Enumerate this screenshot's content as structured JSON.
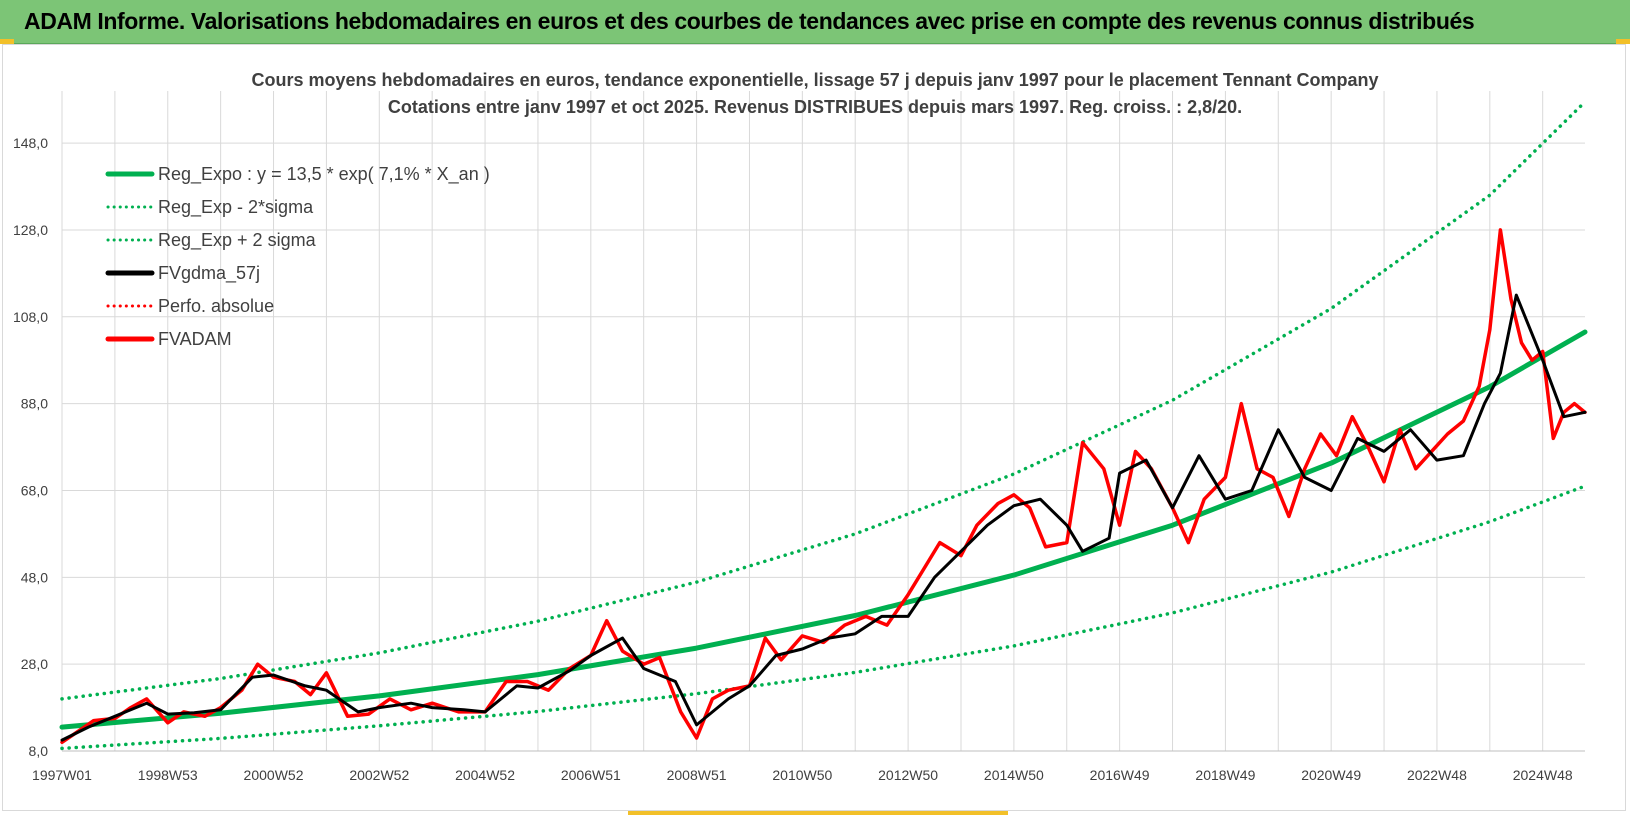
{
  "header": {
    "title": "ADAM Informe. Valorisations hebdomadaires en euros et des courbes de tendances avec prise en compte des revenus connus distribués"
  },
  "colors": {
    "header_bg": "#7cc576",
    "trend": "#00b050",
    "smooth": "#000000",
    "price": "#ff0000",
    "grid": "#d9d9d9"
  },
  "chart_data": {
    "type": "line",
    "title_line1": "Cours moyens hebdomadaires en euros, tendance exponentielle, lissage 57 j depuis janv 1997 pour le placement Tennant Company",
    "title_line2": "Cotations entre janv 1997 et oct 2025. Revenus DISTRIBUES depuis mars 1997. Reg. croiss. : 2,8/20.",
    "ylim": [
      8,
      160
    ],
    "yticks": [
      "8,0",
      "28,0",
      "48,0",
      "68,0",
      "88,0",
      "108,0",
      "128,0",
      "148,0"
    ],
    "xlim": [
      1997.0,
      2025.8
    ],
    "xticks": [
      {
        "label": "1997W01",
        "x": 1997.0
      },
      {
        "label": "1998W53",
        "x": 1999.0
      },
      {
        "label": "2000W52",
        "x": 2001.0
      },
      {
        "label": "2002W52",
        "x": 2003.0
      },
      {
        "label": "2004W52",
        "x": 2005.0
      },
      {
        "label": "2006W51",
        "x": 2007.0
      },
      {
        "label": "2008W51",
        "x": 2009.0
      },
      {
        "label": "2010W50",
        "x": 2011.0
      },
      {
        "label": "2012W50",
        "x": 2013.0
      },
      {
        "label": "2014W50",
        "x": 2015.0
      },
      {
        "label": "2016W49",
        "x": 2017.0
      },
      {
        "label": "2018W49",
        "x": 2019.0
      },
      {
        "label": "2020W49",
        "x": 2021.0
      },
      {
        "label": "2022W48",
        "x": 2023.0
      },
      {
        "label": "2024W48",
        "x": 2025.0
      }
    ],
    "legend": [
      {
        "label": "Reg_Expo : y = 13,5 * exp( 7,1% *  X_an )",
        "style": "solid",
        "color": "#00b050"
      },
      {
        "label": "Reg_Exp - 2*sigma",
        "style": "dotted",
        "color": "#00b050"
      },
      {
        "label": "Reg_Exp + 2 sigma",
        "style": "dotted",
        "color": "#00b050"
      },
      {
        "label": "FVgdma_57j",
        "style": "solid",
        "color": "#000000"
      },
      {
        "label": "Perfo. absolue",
        "style": "dotted",
        "color": "#ff0000"
      },
      {
        "label": "FVADAM",
        "style": "solid",
        "color": "#ff0000"
      }
    ],
    "series": [
      {
        "name": "Reg_Expo : y = 13,5 * exp( 7,1% *  X_an )",
        "x": [
          1997.0,
          2000.0,
          2003.0,
          2006.0,
          2009.0,
          2012.0,
          2015.0,
          2018.0,
          2021.0,
          2024.0,
          2025.8
        ],
        "y": [
          13.5,
          16.7,
          20.7,
          25.6,
          31.7,
          39.2,
          48.5,
          60.0,
          74.3,
          91.9,
          104.5
        ]
      },
      {
        "name": "Reg_Exp - 2*sigma",
        "x": [
          1997.0,
          2000.0,
          2003.0,
          2006.0,
          2009.0,
          2012.0,
          2015.0,
          2018.0,
          2021.0,
          2024.0,
          2025.8
        ],
        "y": [
          8.6,
          10.9,
          13.8,
          17.1,
          21.2,
          26.1,
          32.2,
          39.8,
          49.2,
          60.8,
          69.0
        ]
      },
      {
        "name": "Reg_Exp + 2 sigma",
        "x": [
          1997.0,
          2000.0,
          2003.0,
          2006.0,
          2009.0,
          2012.0,
          2015.0,
          2018.0,
          2021.0,
          2024.0,
          2025.8
        ],
        "y": [
          20.0,
          24.7,
          30.6,
          37.9,
          46.9,
          58.0,
          71.8,
          88.8,
          109.9,
          136.0,
          157.5
        ]
      },
      {
        "name": "FVgdma_57j",
        "x": [
          1997.0,
          1997.5,
          1998.0,
          1998.6,
          1999.0,
          1999.5,
          2000.0,
          2000.6,
          2001.0,
          2001.6,
          2002.0,
          2002.6,
          2003.0,
          2003.6,
          2004.0,
          2004.6,
          2005.0,
          2005.6,
          2006.0,
          2006.6,
          2007.0,
          2007.6,
          2008.0,
          2008.6,
          2009.0,
          2009.6,
          2010.0,
          2010.5,
          2011.0,
          2011.5,
          2012.0,
          2012.5,
          2013.0,
          2013.5,
          2014.0,
          2014.5,
          2015.0,
          2015.5,
          2016.0,
          2016.3,
          2016.8,
          2017.0,
          2017.5,
          2018.0,
          2018.5,
          2019.0,
          2019.5,
          2020.0,
          2020.5,
          2021.0,
          2021.5,
          2022.0,
          2022.5,
          2023.0,
          2023.5,
          2023.9,
          2024.2,
          2024.5,
          2025.0,
          2025.4,
          2025.8
        ],
        "y": [
          10.5,
          13.5,
          16.0,
          19.0,
          16.5,
          16.8,
          17.5,
          25.0,
          25.5,
          23.0,
          22.0,
          17.0,
          18.0,
          19.0,
          18.0,
          17.5,
          17.0,
          23.0,
          22.5,
          26.5,
          30.0,
          34.0,
          27.0,
          24.0,
          14.0,
          20.0,
          23.0,
          30.0,
          31.5,
          34.0,
          35.0,
          39.0,
          39.0,
          48.0,
          54.0,
          60.0,
          64.5,
          66.0,
          60.0,
          54.0,
          57.0,
          72.0,
          75.0,
          64.0,
          76.0,
          66.0,
          68.0,
          82.0,
          71.0,
          68.0,
          80.0,
          77.0,
          82.0,
          75.0,
          76.0,
          88.0,
          95.0,
          113.0,
          98.0,
          85.0,
          86.0
        ]
      },
      {
        "name": "FVADAM",
        "x": [
          1997.0,
          1997.3,
          1997.6,
          1998.0,
          1998.3,
          1998.6,
          1999.0,
          1999.3,
          1999.7,
          2000.0,
          2000.4,
          2000.7,
          2001.0,
          2001.4,
          2001.7,
          2002.0,
          2002.4,
          2002.8,
          2003.2,
          2003.6,
          2004.0,
          2004.5,
          2005.0,
          2005.4,
          2005.8,
          2006.2,
          2006.6,
          2007.0,
          2007.3,
          2007.6,
          2008.0,
          2008.3,
          2008.7,
          2009.0,
          2009.3,
          2009.6,
          2010.0,
          2010.3,
          2010.6,
          2011.0,
          2011.4,
          2011.8,
          2012.2,
          2012.6,
          2013.0,
          2013.3,
          2013.6,
          2014.0,
          2014.3,
          2014.7,
          2015.0,
          2015.3,
          2015.6,
          2016.0,
          2016.3,
          2016.7,
          2017.0,
          2017.3,
          2017.6,
          2018.0,
          2018.3,
          2018.6,
          2019.0,
          2019.3,
          2019.6,
          2019.9,
          2020.2,
          2020.5,
          2020.8,
          2021.1,
          2021.4,
          2021.7,
          2022.0,
          2022.3,
          2022.6,
          2022.9,
          2023.2,
          2023.5,
          2023.8,
          2024.0,
          2024.2,
          2024.4,
          2024.6,
          2024.8,
          2025.0,
          2025.2,
          2025.4,
          2025.6,
          2025.8
        ],
        "y": [
          10.0,
          12.5,
          15.0,
          15.5,
          18.0,
          20.0,
          14.5,
          17.0,
          16.0,
          18.0,
          22.0,
          28.0,
          25.0,
          24.0,
          21.0,
          26.0,
          16.0,
          16.5,
          20.0,
          17.5,
          19.0,
          17.0,
          17.0,
          24.0,
          24.0,
          22.0,
          27.0,
          30.0,
          38.0,
          31.0,
          28.0,
          29.5,
          17.0,
          11.0,
          20.0,
          22.0,
          23.0,
          34.0,
          29.0,
          34.5,
          33.0,
          37.0,
          39.0,
          37.0,
          44.0,
          50.0,
          56.0,
          53.0,
          60.0,
          65.0,
          67.0,
          64.0,
          55.0,
          56.0,
          79.0,
          73.0,
          60.0,
          77.0,
          73.0,
          64.0,
          56.0,
          66.0,
          71.0,
          88.0,
          73.0,
          71.0,
          62.0,
          73.0,
          81.0,
          76.0,
          85.0,
          78.0,
          70.0,
          82.0,
          73.0,
          77.0,
          81.0,
          84.0,
          92.0,
          105.0,
          128.0,
          112.0,
          102.0,
          98.0,
          100.0,
          80.0,
          86.0,
          88.0,
          86.0
        ]
      }
    ]
  }
}
